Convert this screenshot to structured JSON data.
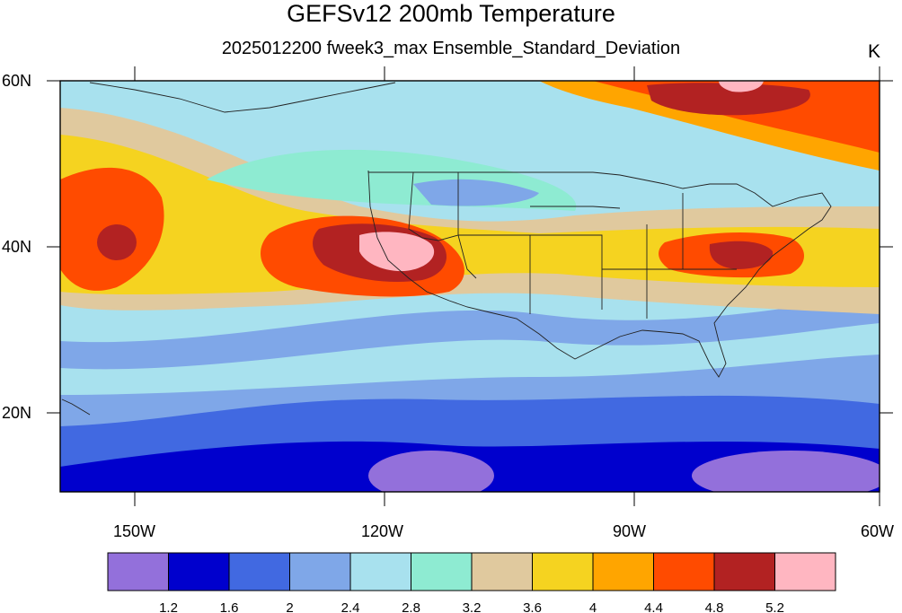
{
  "title": "GEFSv12 200mb Temperature",
  "subtitle": "2025012200 fweek3_max Ensemble_Standard_Deviation",
  "units": "K",
  "lat_labels": [
    "60N",
    "40N",
    "20N"
  ],
  "lon_labels": [
    "150W",
    "120W",
    "90W",
    "60W"
  ],
  "colorbar": {
    "colors": [
      "#9370db",
      "#0000cd",
      "#4169e1",
      "#7fa7e8",
      "#a8e1ee",
      "#8eebd2",
      "#e0c99e",
      "#f5d320",
      "#ffa500",
      "#ff4b00",
      "#b22222",
      "#ffb6c1"
    ],
    "labels": [
      "1.2",
      "1.6",
      "2",
      "2.4",
      "2.8",
      "3.2",
      "3.6",
      "4",
      "4.4",
      "4.8",
      "5.2"
    ]
  }
}
